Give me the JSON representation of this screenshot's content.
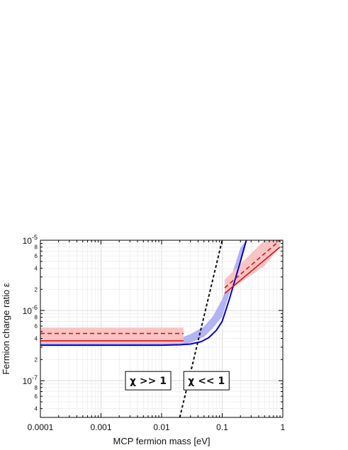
{
  "chart_data": {
    "type": "line",
    "xlabel": "MCP fermion mass [eV]",
    "ylabel": "Fermion charge ratio ε",
    "xscale": "log",
    "yscale": "log",
    "xlim": [
      0.0001,
      1
    ],
    "ylim": [
      3e-08,
      1e-05
    ],
    "grid": true,
    "x_tick_labels": [
      "0.0001",
      "0.001",
      "0.01",
      "0.1",
      "1"
    ],
    "y_tick_labels": [
      {
        "base": "10",
        "exp": "-5"
      },
      {
        "base": "10",
        "exp": "-6"
      },
      {
        "base": "10",
        "exp": "-7"
      }
    ],
    "y_minor_tick_labels": [
      "8",
      "6",
      "4",
      "2",
      "8",
      "6",
      "4",
      "2",
      "8",
      "6",
      "4"
    ],
    "series": [
      {
        "kind": "band",
        "color": "#b3b3f5",
        "x": [
          0.0001,
          0.01,
          0.021,
          0.03,
          0.05,
          0.07,
          0.1,
          0.15,
          0.2,
          0.25,
          0.25,
          0.2,
          0.15,
          0.1,
          0.07,
          0.05,
          0.03,
          0.021,
          0.0001
        ],
        "y": [
          3.25e-07,
          3.25e-07,
          3.28e-07,
          3.45e-07,
          4.2e-07,
          5.6e-07,
          8.2e-07,
          2.5e-06,
          5.5e-06,
          1e-05,
          1e-05,
          7.8e-06,
          3.6e-06,
          1.45e-06,
          8.2e-07,
          5.9e-07,
          4.6e-07,
          4.1e-07,
          4.1e-07
        ]
      },
      {
        "kind": "band",
        "color": "#f9c4c4",
        "x": [
          0.0001,
          0.023,
          0.023,
          0.0001
        ],
        "y": [
          3.4e-07,
          3.4e-07,
          5.7e-07,
          5.7e-07
        ]
      },
      {
        "kind": "band",
        "color": "#f9c4c4",
        "x": [
          0.11,
          0.5,
          0.9,
          0.9,
          0.5,
          0.11
        ],
        "y": [
          1.75e-06,
          4.3e-06,
          8e-06,
          1e-05,
          1e-05,
          2.75e-06
        ]
      },
      {
        "kind": "line",
        "color": "#0000cc",
        "width": 2,
        "dash": "",
        "x": [
          0.0001,
          0.01,
          0.02,
          0.03,
          0.045,
          0.06,
          0.08,
          0.1,
          0.13,
          0.16,
          0.2,
          0.25
        ],
        "y": [
          3.2e-07,
          3.2e-07,
          3.25e-07,
          3.32e-07,
          3.6e-07,
          4.1e-07,
          5.2e-07,
          7e-07,
          1.4e-06,
          2.6e-06,
          5e-06,
          1e-05
        ]
      },
      {
        "kind": "line",
        "color": "#dd1111",
        "width": 1.6,
        "dash": "",
        "x": [
          0.0001,
          0.023
        ],
        "y": [
          3.7e-07,
          3.7e-07
        ]
      },
      {
        "kind": "line",
        "color": "#dd1111",
        "width": 1.6,
        "dash": "6,4",
        "x": [
          0.0001,
          0.023
        ],
        "y": [
          4.7e-07,
          4.7e-07
        ]
      },
      {
        "kind": "line",
        "color": "#dd1111",
        "width": 1.6,
        "dash": "",
        "x": [
          0.11,
          0.9
        ],
        "y": [
          1.75e-06,
          8e-06
        ]
      },
      {
        "kind": "line",
        "color": "#dd1111",
        "width": 1.6,
        "dash": "6,4",
        "x": [
          0.11,
          0.9
        ],
        "y": [
          2.1e-06,
          1e-05
        ]
      },
      {
        "kind": "line",
        "color": "#111111",
        "width": 2,
        "dash": "4,3",
        "x": [
          0.02,
          0.1
        ],
        "y": [
          3e-08,
          1e-05
        ]
      }
    ],
    "annotations": [
      {
        "text": "χ >> 1",
        "x": 0.006,
        "y": 1e-07
      },
      {
        "text": "χ << 1",
        "x": 0.055,
        "y": 1e-07
      }
    ]
  }
}
